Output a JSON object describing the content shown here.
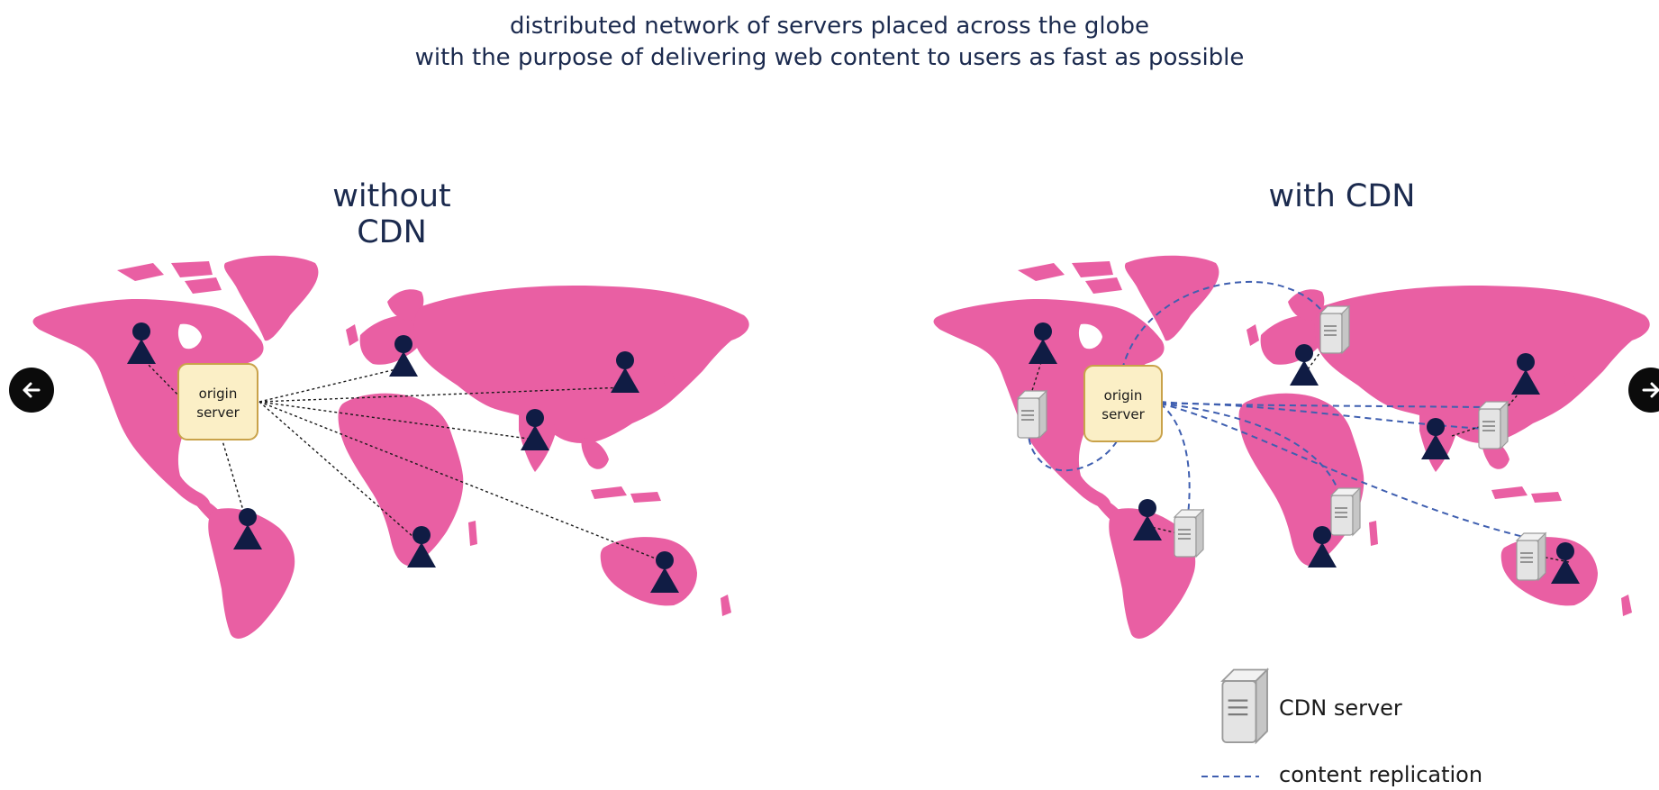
{
  "header": {
    "line1": "distributed network of servers placed across the globe",
    "line2": "with the purpose of delivering web content to users as fast as possible"
  },
  "left_panel": {
    "title": "without CDN",
    "origin_line1": "origin",
    "origin_line2": "server"
  },
  "right_panel": {
    "title": "with CDN",
    "origin_line1": "origin",
    "origin_line2": "server"
  },
  "legend": {
    "cdn_server": "CDN server",
    "content_replication": "content replication"
  },
  "colors": {
    "land": "#e95fa3",
    "user": "#101c44",
    "origin_fill": "#fbefc6",
    "origin_border": "#c9a24a",
    "replication_line": "#3f5fb0",
    "direct_line": "#1a1a1a"
  },
  "icons": {
    "prev": "arrow-left-icon",
    "next": "arrow-right-icon",
    "user": "user-icon",
    "server": "server-icon"
  }
}
